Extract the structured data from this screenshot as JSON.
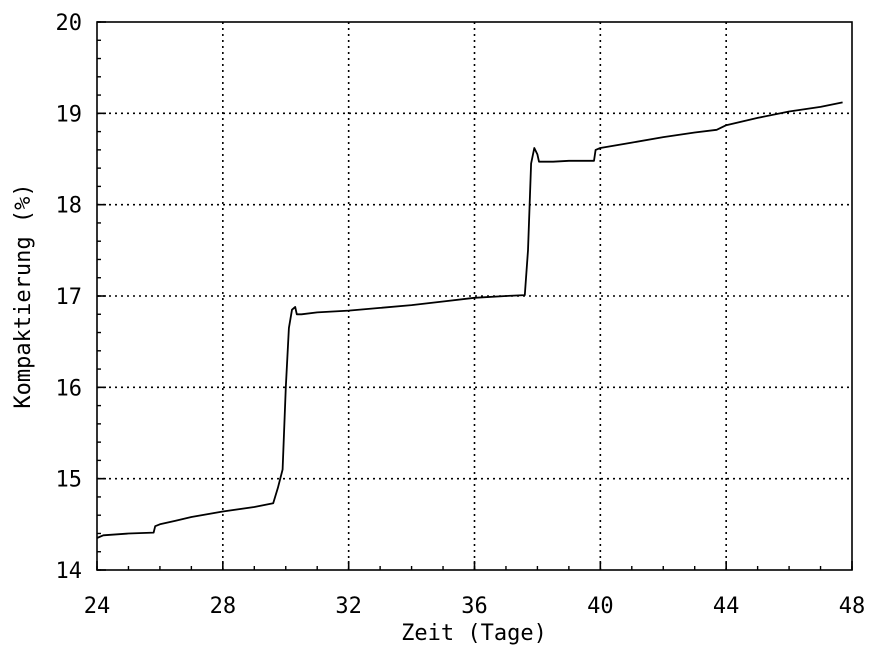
{
  "chart_data": {
    "type": "line",
    "xlabel": "Zeit (Tage)",
    "ylabel": "Kompaktierung (%)",
    "xlim": [
      24,
      48
    ],
    "ylim": [
      14,
      20
    ],
    "xticks": [
      24,
      28,
      32,
      36,
      40,
      44,
      48
    ],
    "yticks": [
      14,
      15,
      16,
      17,
      18,
      19,
      20
    ],
    "x_tick_labels": [
      "24",
      "28",
      "32",
      "36",
      "40",
      "44",
      "48"
    ],
    "y_tick_labels": [
      "14",
      "15",
      "16",
      "17",
      "18",
      "19",
      "20"
    ],
    "grid": true,
    "series": [
      {
        "x": [
          24.0,
          24.2,
          25.0,
          25.8,
          25.85,
          26.0,
          26.5,
          27.0,
          28.0,
          29.0,
          29.6,
          29.75,
          29.9,
          30.0,
          30.1,
          30.2,
          30.3,
          30.35,
          30.5,
          31.0,
          32.0,
          33.0,
          34.0,
          35.0,
          36.0,
          37.0,
          37.6,
          37.7,
          37.8,
          37.9,
          38.0,
          38.05,
          38.5,
          39.0,
          39.8,
          39.85,
          40.0,
          41.0,
          42.0,
          43.0,
          43.7,
          44.0,
          45.0,
          46.0,
          47.0,
          47.7
        ],
        "values": [
          14.35,
          14.38,
          14.4,
          14.41,
          14.48,
          14.5,
          14.54,
          14.58,
          14.64,
          14.69,
          14.73,
          14.9,
          15.1,
          16.0,
          16.65,
          16.85,
          16.88,
          16.8,
          16.8,
          16.82,
          16.84,
          16.87,
          16.9,
          16.94,
          16.98,
          17.0,
          17.01,
          17.5,
          18.45,
          18.62,
          18.55,
          18.47,
          18.47,
          18.48,
          18.48,
          18.6,
          18.62,
          18.68,
          18.74,
          18.79,
          18.82,
          18.87,
          18.95,
          19.02,
          19.07,
          19.12
        ]
      }
    ]
  }
}
